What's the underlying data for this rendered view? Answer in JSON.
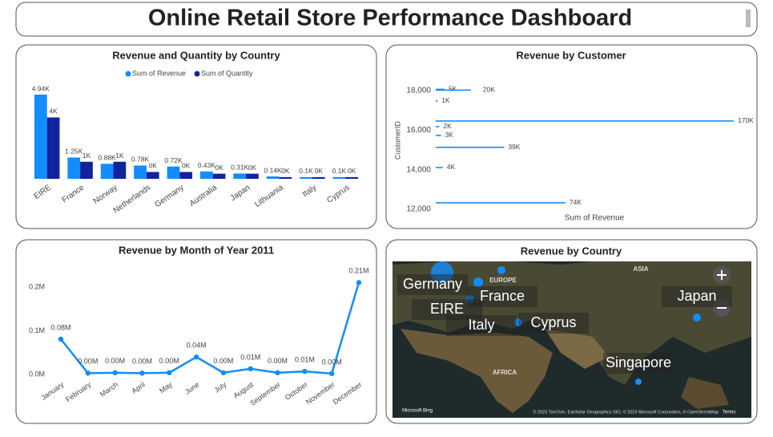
{
  "title": "Online Retail Store Performance Dashboard",
  "chart_data": [
    {
      "type": "bar",
      "title": "Revenue and Quantity by Country",
      "categories": [
        "EIRE",
        "France",
        "Norway",
        "Netherlands",
        "Germany",
        "Australia",
        "Japan",
        "Lithuania",
        "Italy",
        "Cyprus"
      ],
      "series": [
        {
          "name": "Sum of Revenue",
          "color": "#118dff",
          "values": [
            4940,
            1250,
            880,
            780,
            720,
            430,
            310,
            140,
            100,
            100
          ],
          "value_labels": [
            "4.94K",
            "1.25K",
            "0.88K",
            "0.78K",
            "0.72K",
            "0.43K",
            "0.31K",
            "0.14K",
            "0.1K",
            "0.1K"
          ]
        },
        {
          "name": "Sum of Quantity",
          "color": "#12239e",
          "values": [
            3600,
            1000,
            1000,
            400,
            400,
            300,
            300,
            100,
            100,
            100
          ],
          "value_labels": [
            "4K",
            "1K",
            "1K",
            "0K",
            "0K",
            "0K",
            "0K",
            "0K",
            "0K",
            "0K"
          ]
        }
      ]
    },
    {
      "type": "hbar",
      "title": "Revenue by Customer",
      "x_label": "Sum of Revenue",
      "y_label": "CustomerID",
      "customer_ids": [
        18060,
        18020,
        17470,
        16460,
        16180,
        15730,
        15130,
        14110,
        12330
      ],
      "values": [
        5000,
        20000,
        1000,
        170000,
        2000,
        3000,
        39000,
        4000,
        74000
      ],
      "value_labels": [
        "5K",
        "20K",
        "1K",
        "170K",
        "2K",
        "3K",
        "39K",
        "4K",
        "74K"
      ],
      "color": "#118dff",
      "ylim": [
        11800,
        18400
      ],
      "yticks": [
        {
          "value": 12000,
          "label": "12,000"
        },
        {
          "value": 14000,
          "label": "14,000"
        },
        {
          "value": 16000,
          "label": "16,000"
        },
        {
          "value": 18000,
          "label": "18,000"
        }
      ]
    },
    {
      "type": "line",
      "title": "Revenue by Month of Year 2011",
      "categories": [
        "January",
        "February",
        "March",
        "April",
        "May",
        "June",
        "July",
        "August",
        "September",
        "October",
        "November",
        "December"
      ],
      "values": [
        0.081,
        0.003,
        0.004,
        0.003,
        0.004,
        0.04,
        0.004,
        0.013,
        0.004,
        0.007,
        0.002,
        0.211
      ],
      "value_labels": [
        "0.08M",
        "0.00M",
        "0.00M",
        "0.00M",
        "0.00M",
        "0.04M",
        "0.00M",
        "0.01M",
        "0.00M",
        "0.01M",
        "0.00M",
        "0.21M"
      ],
      "color": "#118dff",
      "ylim": [
        0,
        0.23
      ],
      "yticks": [
        {
          "value": 0,
          "label": "0.0M"
        },
        {
          "value": 0.1,
          "label": "0.1M"
        },
        {
          "value": 0.2,
          "label": "0.2M"
        }
      ]
    }
  ],
  "map": {
    "title": "Revenue by Country",
    "labels": [
      "Germany",
      "EIRE",
      "France",
      "Italy",
      "Cyprus",
      "Japan",
      "Singapore"
    ],
    "regions": [
      "EUROPE",
      "ASIA",
      "AFRICA"
    ],
    "brand": "Microsoft Bing",
    "attribution": "© 2023 TomTom, Earthstar Geographics SIO, © 2023 Microsoft Corporation, © OpenStreetMap",
    "terms": "Terms"
  }
}
